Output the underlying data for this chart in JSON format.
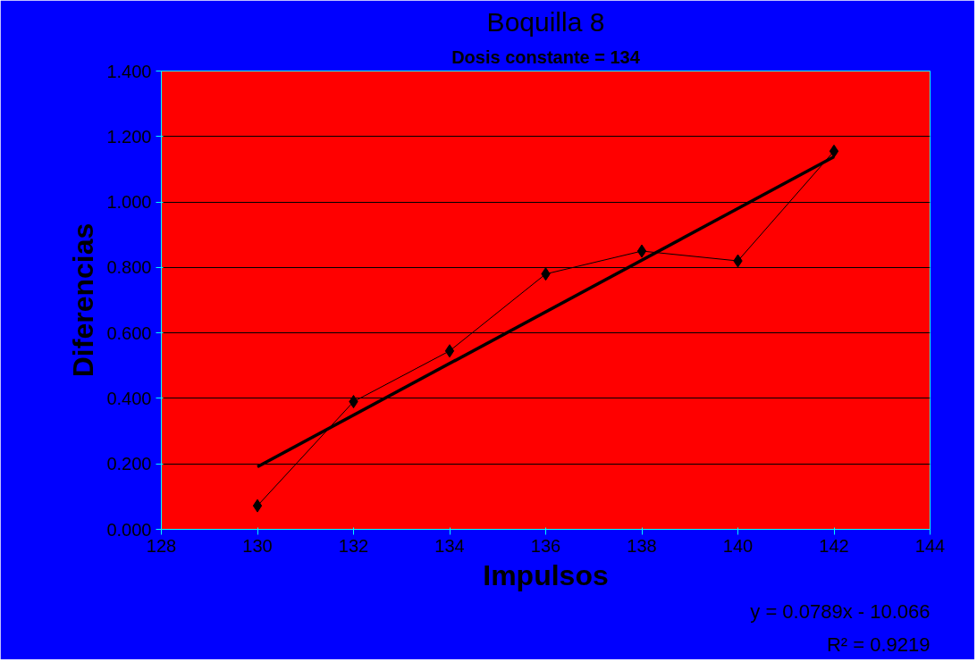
{
  "chart_data": {
    "type": "line",
    "title": "Boquilla 8",
    "subtitle": "Dosis constante = 134",
    "xlabel": "Impulsos",
    "ylabel": "Diferencias",
    "x": [
      130,
      132,
      134,
      136,
      138,
      140,
      142
    ],
    "series": [
      {
        "color": "#000000",
        "marker": "diamond",
        "values": [
          0.072,
          0.39,
          0.545,
          0.78,
          0.85,
          0.82,
          1.155
        ]
      },
      {
        "color": "#000000",
        "marker": "none",
        "x": [
          130,
          142
        ],
        "values": [
          0.191,
          1.138
        ]
      }
    ],
    "xlim": [
      128,
      144
    ],
    "xticks": [
      128,
      130,
      132,
      134,
      136,
      138,
      140,
      142,
      144
    ],
    "ylim": [
      0,
      1.4
    ],
    "yticks": [
      {
        "value": 0,
        "label": "0.000"
      },
      {
        "value": 0.2,
        "label": "0.200"
      },
      {
        "value": 0.4,
        "label": "0.400"
      },
      {
        "value": 0.6,
        "label": "0.600"
      },
      {
        "value": 0.8,
        "label": "0.800"
      },
      {
        "value": 1.0,
        "label": "1.000"
      },
      {
        "value": 1.2,
        "label": "1.200"
      },
      {
        "value": 1.4,
        "label": "1.400"
      }
    ],
    "grid": "y",
    "annotations": [
      "y = 0.0789x - 10.066",
      "R² = 0.9219"
    ]
  }
}
